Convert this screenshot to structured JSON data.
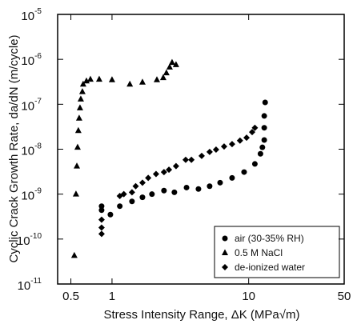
{
  "chart_data": {
    "type": "scatter",
    "x_label": "Stress Intensity Range, ΔK (MPa√m)",
    "y_label": "Cyclic Crack Growth Rate, da/dN (m/cycle)",
    "xscale": "log",
    "yscale": "log",
    "xlim": [
      0.4,
      50
    ],
    "ylim": [
      1e-11,
      1e-05
    ],
    "xticks": [
      {
        "value": 0.5,
        "label": "0.5"
      },
      1,
      10,
      50
    ],
    "yticks": [
      {
        "value": 1e-11,
        "label": "10",
        "exponent": "-11"
      },
      {
        "value": 1e-10,
        "label": "10",
        "exponent": "-10"
      },
      {
        "value": 1e-09,
        "label": "10",
        "exponent": "-9"
      },
      {
        "value": 1e-08,
        "label": "10",
        "exponent": "-8"
      },
      {
        "value": 1e-07,
        "label": "10",
        "exponent": "-7"
      },
      {
        "value": 1e-06,
        "label": "10",
        "exponent": "-6"
      },
      {
        "value": 1e-05,
        "label": "10",
        "exponent": "-5"
      }
    ],
    "legend": "lower right",
    "series": [
      {
        "name": "air (30-35% RH)",
        "marker": "circle",
        "color": "#000000",
        "x": [
          0.839,
          0.839,
          0.973,
          1.14,
          1.4,
          1.67,
          1.96,
          2.4,
          2.86,
          3.51,
          4.29,
          5.18,
          6.18,
          7.56,
          9.26,
          11.1,
          12.2,
          12.6,
          13.0,
          13.0,
          13.0,
          13.2
        ],
        "values": [
          5.4e-10,
          4.4e-10,
          3.5e-10,
          5.4e-10,
          6.9e-10,
          8.5e-10,
          1e-09,
          1.2e-09,
          1.1e-09,
          1.4e-09,
          1.3e-09,
          1.5e-09,
          1.8e-09,
          2.3e-09,
          3.1e-09,
          4.7e-09,
          7.9e-09,
          1.1e-08,
          1.6e-08,
          3e-08,
          5.5e-08,
          1.1e-07
        ]
      },
      {
        "name": "0.5 M NaCl",
        "marker": "triangle",
        "color": "#000000",
        "x": [
          0.53,
          0.545,
          0.553,
          0.56,
          0.567,
          0.575,
          0.583,
          0.591,
          0.607,
          0.615,
          0.65,
          0.695,
          0.806,
          1.0,
          1.35,
          1.67,
          2.13,
          2.37,
          2.5,
          2.64,
          2.75,
          2.94
        ],
        "values": [
          4.3e-11,
          1e-09,
          4.2e-09,
          1.1e-08,
          2.6e-08,
          4.9e-08,
          8.3e-08,
          1.3e-07,
          1.9e-07,
          2.8e-07,
          3.3e-07,
          3.6e-07,
          3.6e-07,
          3.5e-07,
          2.8e-07,
          3.1e-07,
          3.5e-07,
          3.9e-07,
          5e-07,
          6.7e-07,
          8.5e-07,
          7.6e-07
        ]
      },
      {
        "name": "de-ionized water",
        "marker": "diamond",
        "color": "#000000",
        "x": [
          0.839,
          0.839,
          0.839,
          1.14,
          1.22,
          1.4,
          1.49,
          1.67,
          1.84,
          2.1,
          2.4,
          2.61,
          2.94,
          3.46,
          3.81,
          4.53,
          5.18,
          5.77,
          6.61,
          7.56,
          8.64,
          9.65,
          10.6,
          11.1
        ],
        "values": [
          2.7e-10,
          1.8e-10,
          1.3e-10,
          9.1e-10,
          1e-09,
          1.1e-09,
          1.5e-09,
          1.8e-09,
          2.3e-09,
          2.8e-09,
          3.1e-09,
          3.5e-09,
          4.2e-09,
          5.8e-09,
          5.8e-09,
          7.1e-09,
          8.7e-09,
          9.8e-09,
          1.15e-08,
          1.3e-08,
          1.55e-08,
          1.8e-08,
          2.4e-08,
          3e-08
        ]
      }
    ]
  }
}
